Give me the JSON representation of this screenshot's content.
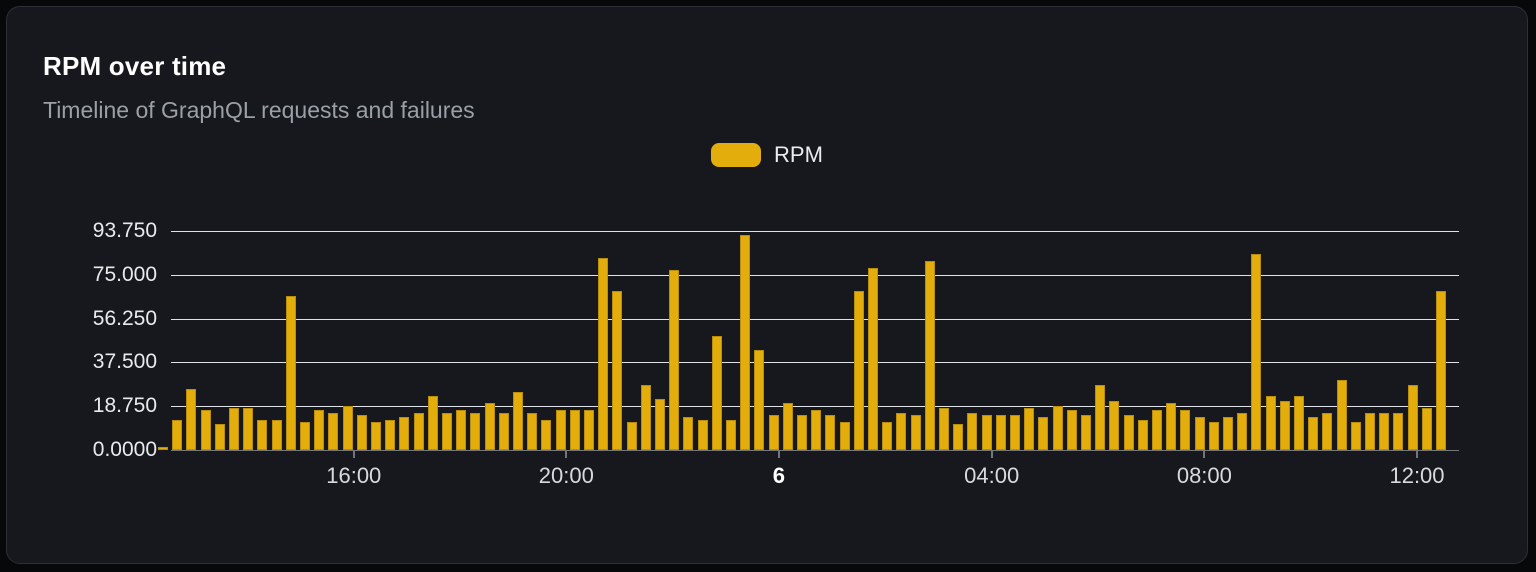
{
  "header": {
    "title": "RPM over time",
    "subtitle": "Timeline of GraphQL requests and failures"
  },
  "legend": {
    "items": [
      {
        "label": "RPM",
        "color": "#e3ae0c"
      }
    ]
  },
  "colors": {
    "bar": "#e3ae0c",
    "card_background": "#16181d",
    "gridline": "#dfe2e9",
    "axis_line": "#74767d",
    "title_text": "#ffffff",
    "subtitle_text": "#9aa0a6",
    "tick_text": "#e8eaed"
  },
  "chart_data": {
    "type": "bar",
    "title": "RPM over time",
    "subtitle": "Timeline of GraphQL requests and failures",
    "series_name": "RPM",
    "xlabel": "",
    "ylabel": "",
    "ylim": [
      0,
      93.75
    ],
    "grid": true,
    "legend_position": "top-center",
    "yticks": [
      "93.750",
      "75.000",
      "56.250",
      "37.500",
      "18.750",
      "0.0000"
    ],
    "xticks": [
      {
        "label": "16:00",
        "pos": 0.1419,
        "bold": false
      },
      {
        "label": "20:00",
        "pos": 0.3069,
        "bold": false
      },
      {
        "label": "6",
        "pos": 0.472,
        "bold": true
      },
      {
        "label": "04:00",
        "pos": 0.6372,
        "bold": false
      },
      {
        "label": "08:00",
        "pos": 0.8023,
        "bold": false
      },
      {
        "label": "12:00",
        "pos": 0.9674,
        "bold": false
      }
    ],
    "values": [
      1.5,
      13,
      26,
      17,
      11,
      18,
      18,
      13,
      13,
      66,
      12,
      17,
      16,
      19,
      15,
      12,
      13,
      14,
      16,
      23,
      16,
      17,
      16,
      20,
      16,
      25,
      16,
      13,
      17,
      17,
      17,
      82,
      68,
      12,
      28,
      22,
      77,
      14,
      13,
      49,
      13,
      92,
      43,
      15,
      20,
      15,
      17,
      15,
      12,
      68,
      78,
      12,
      16,
      15,
      81,
      18,
      11,
      16,
      15,
      15,
      15,
      18,
      14,
      19,
      17,
      15,
      28,
      21,
      15,
      13,
      17,
      20,
      17,
      14,
      12,
      14,
      16,
      84,
      23,
      21,
      23,
      14,
      16,
      30,
      12,
      16,
      16,
      16,
      28,
      18,
      68
    ]
  }
}
